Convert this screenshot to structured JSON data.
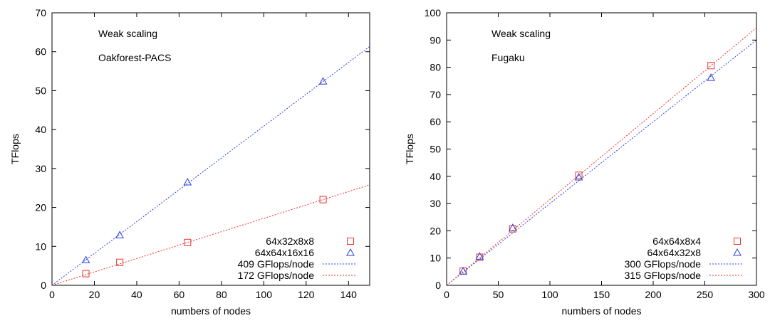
{
  "chart_data": [
    {
      "type": "scatter",
      "xlabel": "numbers of nodes",
      "ylabel": "TFlops",
      "xlim": [
        0,
        150
      ],
      "ylim": [
        0,
        70
      ],
      "xticks": [
        0,
        20,
        40,
        60,
        80,
        100,
        120,
        140
      ],
      "yticks": [
        0,
        10,
        20,
        30,
        40,
        50,
        60,
        70
      ],
      "annotations": [
        "Weak scaling",
        "Oakforest-PACS"
      ],
      "legend_position": "bottom-right",
      "series": [
        {
          "name": "64x32x8x8",
          "kind": "points",
          "marker": "square",
          "color": "#e8352c",
          "points": [
            [
              16,
              3.0
            ],
            [
              32,
              5.9
            ],
            [
              64,
              11.0
            ],
            [
              128,
              22.0
            ]
          ]
        },
        {
          "name": "64x64x16x16",
          "kind": "points",
          "marker": "triangle",
          "color": "#2b3fd9",
          "points": [
            [
              16,
              6.5
            ],
            [
              32,
              12.9
            ],
            [
              64,
              26.5
            ],
            [
              128,
              52.4
            ]
          ]
        },
        {
          "name": "409 GFlops/node",
          "kind": "line",
          "dash": "dotted",
          "color": "#2b3fd9",
          "slope": 0.409
        },
        {
          "name": "172 GFlops/node",
          "kind": "line",
          "dash": "dotted",
          "color": "#e8352c",
          "slope": 0.172
        }
      ]
    },
    {
      "type": "scatter",
      "xlabel": "numbers of nodes",
      "ylabel": "TFlops",
      "xlim": [
        0,
        300
      ],
      "ylim": [
        0,
        100
      ],
      "xticks": [
        0,
        50,
        100,
        150,
        200,
        250,
        300
      ],
      "yticks": [
        0,
        10,
        20,
        30,
        40,
        50,
        60,
        70,
        80,
        90,
        100
      ],
      "annotations": [
        "Weak scaling",
        "Fugaku"
      ],
      "legend_position": "bottom-right",
      "series": [
        {
          "name": "64x64x8x4",
          "kind": "points",
          "marker": "square",
          "color": "#e8352c",
          "points": [
            [
              16,
              5.2
            ],
            [
              32,
              10.3
            ],
            [
              64,
              20.7
            ],
            [
              128,
              40.4
            ],
            [
              256,
              80.6
            ]
          ]
        },
        {
          "name": "64x64x32x8",
          "kind": "points",
          "marker": "triangle",
          "color": "#2b3fd9",
          "points": [
            [
              16,
              5.2
            ],
            [
              32,
              10.6
            ],
            [
              64,
              21.1
            ],
            [
              128,
              39.7
            ],
            [
              256,
              76.2
            ]
          ]
        },
        {
          "name": "300 GFlops/node",
          "kind": "line",
          "dash": "dotted",
          "color": "#2b3fd9",
          "slope": 0.3
        },
        {
          "name": "315 GFlops/node",
          "kind": "line",
          "dash": "dotted",
          "color": "#e8352c",
          "slope": 0.315
        }
      ]
    }
  ]
}
